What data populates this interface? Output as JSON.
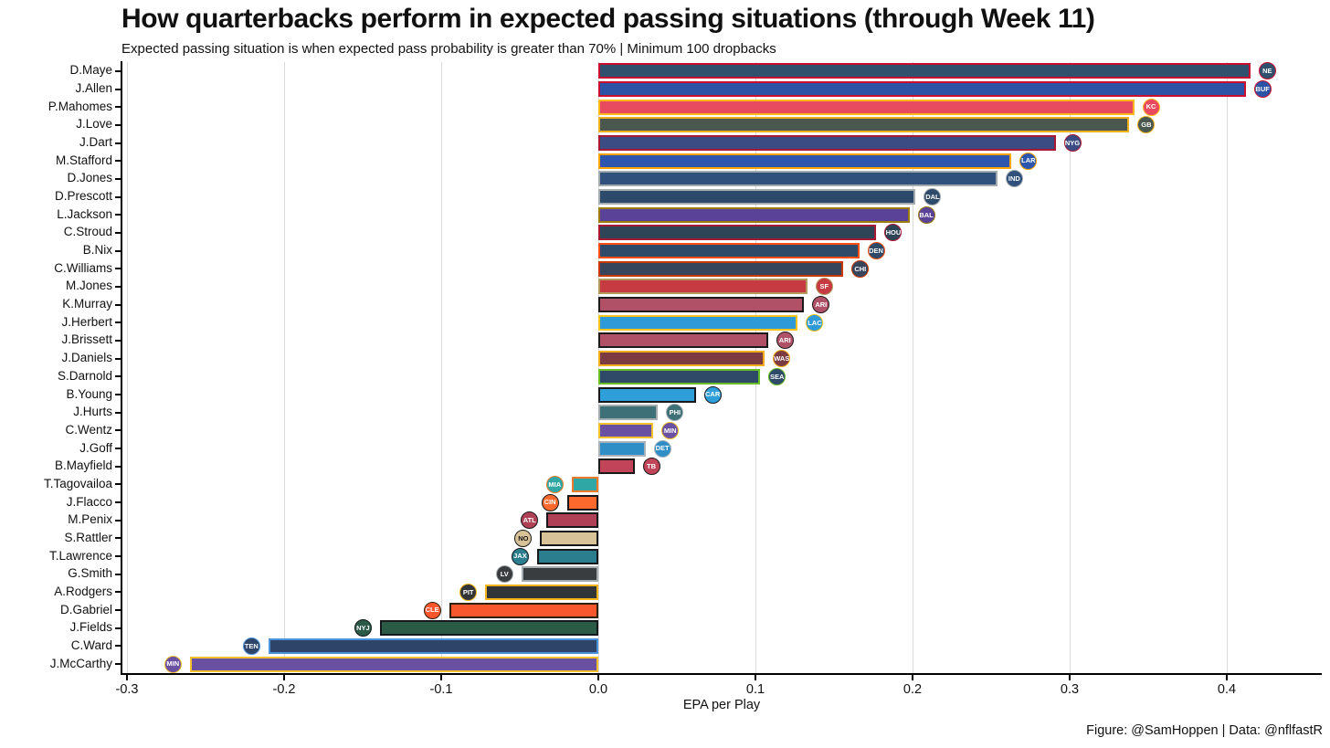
{
  "header": {
    "title": "How quarterbacks perform in expected passing situations (through Week 11)",
    "subtitle": "Expected passing situation is when expected pass probability is greater than 70% | Minimum 100 dropbacks"
  },
  "footer": {
    "caption": "Figure: @SamHoppen | Data: @nflfastR"
  },
  "chart_data": {
    "type": "bar",
    "orientation": "horizontal",
    "title": "How quarterbacks perform in expected passing situations (through Week 11)",
    "subtitle": "Expected passing situation is when expected pass probability is greater than 70% | Minimum 100 dropbacks",
    "xlabel": "EPA per Play",
    "ylabel": "",
    "grid": true,
    "xlim": [
      -0.303,
      0.46
    ],
    "x_ticks": [
      -0.3,
      -0.2,
      -0.1,
      0.0,
      0.1,
      0.2,
      0.3,
      0.4
    ],
    "x_tick_labels": [
      "-0.3",
      "-0.2",
      "-0.1",
      "0.0",
      "0.1",
      "0.2",
      "0.3",
      "0.4"
    ],
    "categories": [
      "D.Maye",
      "J.Allen",
      "P.Mahomes",
      "J.Love",
      "J.Dart",
      "M.Stafford",
      "D.Jones",
      "D.Prescott",
      "L.Jackson",
      "C.Stroud",
      "B.Nix",
      "C.Williams",
      "M.Jones",
      "K.Murray",
      "J.Herbert",
      "J.Brissett",
      "J.Daniels",
      "S.Darnold",
      "B.Young",
      "J.Hurts",
      "C.Wentz",
      "J.Goff",
      "B.Mayfield",
      "T.Tagovailoa",
      "J.Flacco",
      "M.Penix",
      "S.Rattler",
      "T.Lawrence",
      "G.Smith",
      "A.Rodgers",
      "D.Gabriel",
      "J.Fields",
      "C.Ward",
      "J.McCarthy"
    ],
    "values": [
      0.415,
      0.412,
      0.341,
      0.338,
      0.291,
      0.263,
      0.254,
      0.202,
      0.198,
      0.177,
      0.166,
      0.156,
      0.133,
      0.131,
      0.127,
      0.108,
      0.106,
      0.103,
      0.062,
      0.038,
      0.035,
      0.03,
      0.023,
      -0.017,
      -0.02,
      -0.033,
      -0.037,
      -0.039,
      -0.049,
      -0.072,
      -0.095,
      -0.139,
      -0.21,
      -0.26
    ],
    "teams": [
      "NE",
      "BUF",
      "KC",
      "GB",
      "NYG",
      "LAR",
      "IND",
      "DAL",
      "BAL",
      "HOU",
      "DEN",
      "CHI",
      "SF",
      "ARI",
      "LAC",
      "ARI",
      "WAS",
      "SEA",
      "CAR",
      "PHI",
      "MIN",
      "DET",
      "TB",
      "MIA",
      "CIN",
      "ATL",
      "NO",
      "JAX",
      "LV",
      "PIT",
      "CLE",
      "NYJ",
      "TEN",
      "MIN"
    ],
    "bar_fill_colors": [
      "#31506e",
      "#2d53a6",
      "#e84a5f",
      "#4a574e",
      "#3b4b84",
      "#2d57ae",
      "#30517c",
      "#2e4a6b",
      "#5b4299",
      "#2e4557",
      "#2e4a68",
      "#36455c",
      "#c63a41",
      "#b05168",
      "#2e9ad8",
      "#b05168",
      "#7c3b40",
      "#2e4a68",
      "#2f9fd9",
      "#3d7077",
      "#6950a1",
      "#2f8ec6",
      "#c24458",
      "#2fa8a5",
      "#fb6a2c",
      "#b04055",
      "#d8c398",
      "#2b7e8e",
      "#3a3d3f",
      "#323538",
      "#f8562c",
      "#2b5a47",
      "#2e4468",
      "#6950a1"
    ],
    "bar_outline_colors": [
      "#c8102e",
      "#c8102e",
      "#ffb81c",
      "#f0b01e",
      "#a71930",
      "#ffa300",
      "#a2aaad",
      "#a5acaf",
      "#9e7c0c",
      "#a71930",
      "#fb4f14",
      "#c83803",
      "#b3995d",
      "#1a1a1a",
      "#f7c41d",
      "#1a1a1a",
      "#f3ac1a",
      "#69be28",
      "#16181c",
      "#a5acaf",
      "#f4c12f",
      "#aab3b9",
      "#1a1a1a",
      "#f07a2a",
      "#16181c",
      "#16181c",
      "#16181c",
      "#16181c",
      "#a5acaf",
      "#f3b41b",
      "#31200a",
      "#16181c",
      "#4b92db",
      "#f4c12f"
    ],
    "grid_color": "#d9d9d9",
    "axis_color": "#000000",
    "background_color": "#ffffff"
  }
}
